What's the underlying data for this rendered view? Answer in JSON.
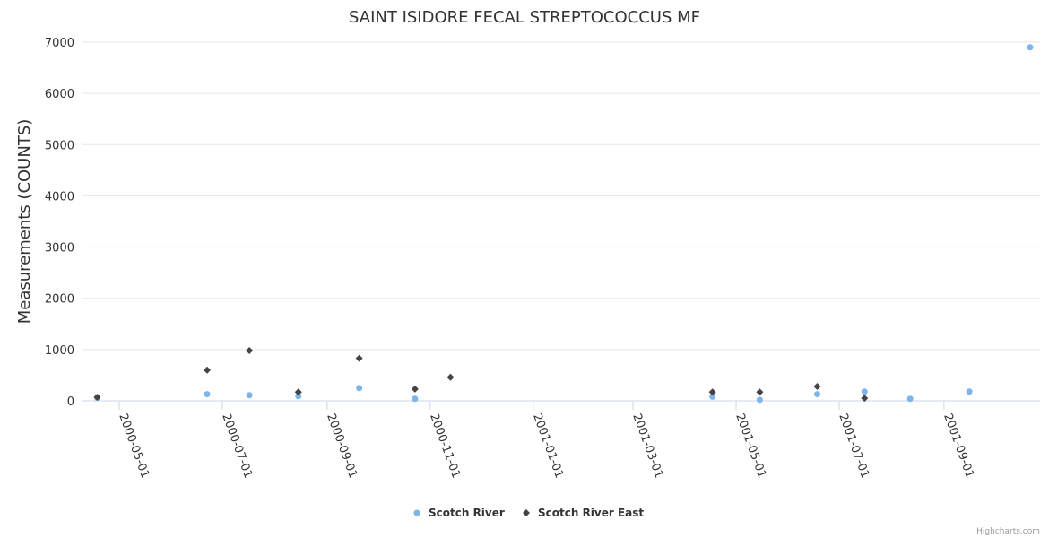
{
  "chart_data": {
    "type": "scatter",
    "title": "SAINT ISIDORE FECAL STREPTOCOCCUS MF",
    "xlabel": "",
    "ylabel": "Measurements (COUNTS)",
    "ylim": [
      0,
      7000
    ],
    "yticks": [
      0,
      1000,
      2000,
      3000,
      4000,
      5000,
      6000,
      7000
    ],
    "xticks": [
      "2000-05-01",
      "2000-07-01",
      "2000-09-01",
      "2000-11-01",
      "2001-01-01",
      "2001-03-01",
      "2001-05-01",
      "2001-07-01",
      "2001-09-01"
    ],
    "grid": true,
    "legend_position": "bottom-center",
    "series": [
      {
        "name": "Scotch River",
        "color": "#7cb5ec",
        "marker": "circle",
        "points": [
          [
            "2000-04-18",
            60
          ],
          [
            "2000-06-22",
            130
          ],
          [
            "2000-07-17",
            110
          ],
          [
            "2000-08-15",
            90
          ],
          [
            "2000-09-20",
            250
          ],
          [
            "2000-10-23",
            40
          ],
          [
            "2001-04-17",
            80
          ],
          [
            "2001-05-15",
            20
          ],
          [
            "2001-06-18",
            130
          ],
          [
            "2001-07-16",
            180
          ],
          [
            "2001-08-12",
            40
          ],
          [
            "2001-09-16",
            180
          ],
          [
            "2001-10-22",
            6900
          ]
        ]
      },
      {
        "name": "Scotch River East",
        "color": "#434348",
        "marker": "diamond",
        "points": [
          [
            "2000-04-18",
            70
          ],
          [
            "2000-06-22",
            600
          ],
          [
            "2000-07-17",
            980
          ],
          [
            "2000-08-15",
            170
          ],
          [
            "2000-09-20",
            830
          ],
          [
            "2000-10-23",
            230
          ],
          [
            "2000-11-13",
            460
          ],
          [
            "2001-04-17",
            170
          ],
          [
            "2001-05-15",
            170
          ],
          [
            "2001-06-18",
            280
          ],
          [
            "2001-07-16",
            50
          ]
        ]
      }
    ]
  },
  "credits": "Highcharts.com"
}
